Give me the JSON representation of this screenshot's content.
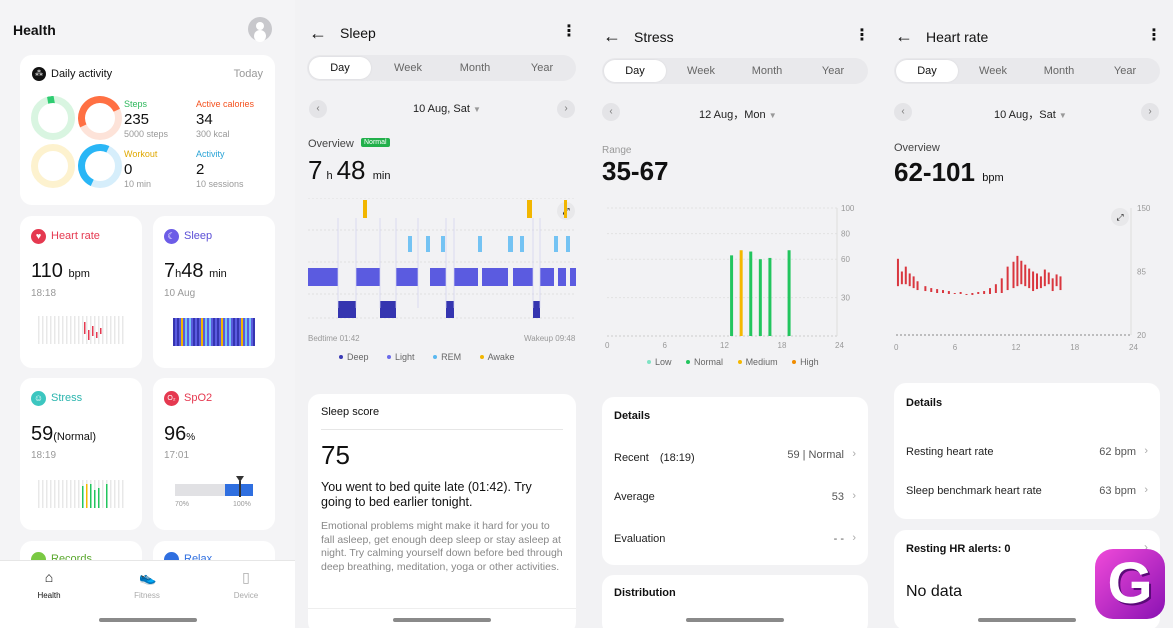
{
  "health": {
    "title": "Health",
    "daily": {
      "title": "Daily activity",
      "today": "Today",
      "steps": {
        "label": "Steps",
        "value": "235",
        "sub": "5000 steps"
      },
      "calories": {
        "label": "Active calories",
        "value": "34",
        "sub": "300 kcal"
      },
      "workout": {
        "label": "Workout",
        "value": "0",
        "sub": "10 min"
      },
      "activity": {
        "label": "Activity",
        "value": "2",
        "sub": "10 sessions"
      }
    },
    "heart": {
      "label": "Heart rate",
      "value": "110",
      "unit": "bpm",
      "time": "18:18"
    },
    "sleep": {
      "label": "Sleep",
      "h": "7",
      "hu": "h",
      "m": "48",
      "mu": "min",
      "date": "10 Aug"
    },
    "stress": {
      "label": "Stress",
      "value": "59",
      "status": "(Normal)",
      "time": "18:19"
    },
    "spo2": {
      "label": "SpO2",
      "value": "96",
      "unit": "%",
      "time": "17:01",
      "scale_low": "70%",
      "scale_high": "100%"
    },
    "cut1": "Records",
    "cut2": "Relax",
    "tabs": {
      "health": "Health",
      "fitness": "Fitness",
      "device": "Device"
    }
  },
  "sleep_screen": {
    "title": "Sleep",
    "tabs": [
      "Day",
      "Week",
      "Month",
      "Year"
    ],
    "date": "10 Aug, Sat",
    "overview": "Overview",
    "badge": "Normal",
    "h": "7",
    "hu": "h",
    "m": "48",
    "mu": "min",
    "bedtime": "Bedtime 01:42",
    "wakeup": "Wakeup 09:48",
    "legend": [
      "Deep",
      "Light",
      "REM",
      "Awake"
    ],
    "score_title": "Sleep score",
    "score": "75",
    "advice": "You went to bed quite late (01:42). Try going to bed earlier tonight.",
    "detail": "Emotional problems might make it hard for you to fall asleep, get enough deep sleep or stay asleep at night. Try calming yourself down before bed through deep breathing, meditation, yoga or other activities."
  },
  "stress_screen": {
    "title": "Stress",
    "tabs": [
      "Day",
      "Week",
      "Month",
      "Year"
    ],
    "date": "12 Aug，Mon",
    "range_label": "Range",
    "range": "35-67",
    "yticks": [
      "100",
      "80",
      "60",
      "30"
    ],
    "xticks": [
      "0",
      "6",
      "12",
      "18",
      "24"
    ],
    "legend": [
      "Low",
      "Normal",
      "Medium",
      "High"
    ],
    "details_title": "Details",
    "recent_label": "Recent　(18:19)",
    "recent_val": "59 | Normal",
    "avg_label": "Average",
    "avg_val": "53",
    "eval_label": "Evaluation",
    "eval_val": "- -",
    "dist_title": "Distribution"
  },
  "hr_screen": {
    "title": "Heart rate",
    "tabs": [
      "Day",
      "Week",
      "Month",
      "Year"
    ],
    "date": "10 Aug，Sat",
    "overview": "Overview",
    "range": "62-101",
    "unit": "bpm",
    "yticks": [
      "150",
      "85",
      "20"
    ],
    "xticks": [
      "0",
      "6",
      "12",
      "18",
      "24"
    ],
    "details_title": "Details",
    "rest_label": "Resting heart rate",
    "rest_val": "62 bpm",
    "bench_label": "Sleep benchmark heart rate",
    "bench_val": "63 bpm",
    "alerts": "Resting HR alerts: 0",
    "nodata": "No data"
  },
  "chart_data": [
    {
      "type": "bar",
      "title": "",
      "xlabel": "",
      "ylabel": "",
      "x": [
        13,
        14,
        15,
        16,
        17,
        19
      ],
      "values": [
        63,
        67,
        66,
        60,
        61,
        67
      ],
      "colors": [
        "#22c55e",
        "#f5b800",
        "#22c55e",
        "#22c55e",
        "#22c55e",
        "#22c55e"
      ],
      "ylim": [
        0,
        100
      ],
      "xlim": [
        0,
        24
      ]
    },
    {
      "type": "line",
      "title": "",
      "xlabel": "",
      "ylabel": "",
      "x": [
        0.2,
        0.6,
        1.0,
        1.4,
        1.8,
        2.2,
        3,
        3.6,
        4.2,
        4.8,
        5.4,
        6,
        6.6,
        7.2,
        7.8,
        8.4,
        9,
        9.6,
        10.2,
        10.8,
        11.4,
        12,
        12.4,
        12.8,
        13.2,
        13.6,
        14,
        14.4,
        14.8,
        15.2,
        15.6,
        16,
        16.4,
        16.8
      ],
      "high": [
        98,
        85,
        90,
        83,
        80,
        75,
        70,
        68,
        67,
        66,
        65,
        63,
        64,
        62,
        63,
        64,
        65,
        68,
        72,
        78,
        90,
        95,
        101,
        96,
        92,
        88,
        85,
        83,
        80,
        87,
        84,
        78,
        82,
        80
      ],
      "low": [
        70,
        72,
        72,
        70,
        68,
        66,
        65,
        64,
        63,
        63,
        62,
        62,
        62,
        61,
        61,
        62,
        62,
        62,
        63,
        63,
        66,
        68,
        70,
        72,
        70,
        68,
        65,
        67,
        68,
        70,
        72,
        65,
        70,
        66
      ],
      "ylim": [
        20,
        150
      ],
      "xlim": [
        0,
        24
      ]
    },
    {
      "type": "bar",
      "title": "",
      "xlabel": "",
      "ylabel": "",
      "note": "sleep stages",
      "stages": [
        "Deep",
        "Light",
        "REM",
        "Awake"
      ]
    }
  ]
}
